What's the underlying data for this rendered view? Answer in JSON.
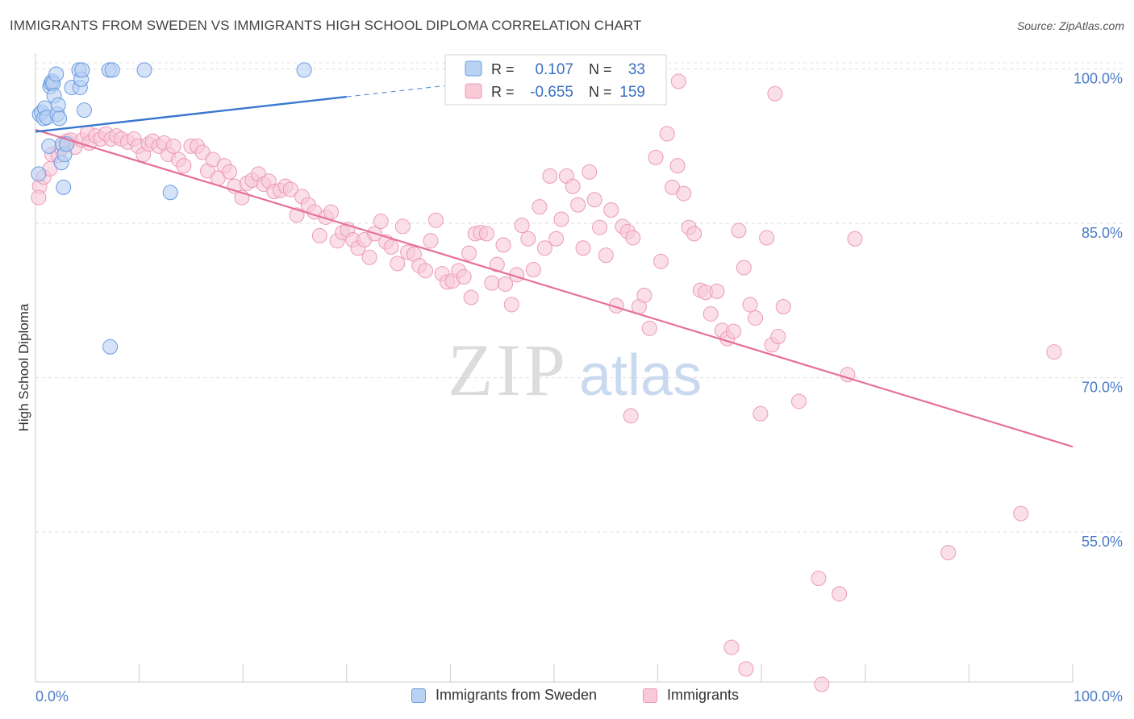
{
  "title": "IMMIGRANTS FROM SWEDEN VS IMMIGRANTS HIGH SCHOOL DIPLOMA CORRELATION CHART",
  "source": "Source: ZipAtlas.com",
  "watermark": {
    "zip": "ZIP",
    "atlas": "atlas"
  },
  "colors": {
    "blue_fill": "#b9d1f3",
    "blue_stroke": "#6b9be0",
    "blue_line": "#3a78d0",
    "pink_fill": "#f9c9d8",
    "pink_stroke": "#ec9ab6",
    "pink_line": "#e6709a",
    "axis_text_blue": "#4a7cc9",
    "grid": "#dddddd"
  },
  "stats_box": {
    "rows": [
      {
        "r_label": "R =",
        "r_value": "0.107",
        "n_label": "N =",
        "n_value": "33",
        "color": "blue"
      },
      {
        "r_label": "R =",
        "r_value": "-0.655",
        "n_label": "N =",
        "n_value": "159",
        "color": "pink"
      }
    ]
  },
  "legend": {
    "items": [
      {
        "label": "Immigrants from Sweden",
        "color": "blue"
      },
      {
        "label": "Immigrants",
        "color": "pink"
      }
    ]
  },
  "chart_data": {
    "type": "scatter",
    "title": "IMMIGRANTS FROM SWEDEN VS IMMIGRANTS HIGH SCHOOL DIPLOMA CORRELATION CHART",
    "xlabel": "",
    "ylabel": "High School Diploma",
    "xlim": [
      0,
      100
    ],
    "ylim": [
      40,
      100
    ],
    "x_tick_labels": [
      "0.0%",
      "100.0%"
    ],
    "y_ticks": [
      55,
      70,
      85,
      100
    ],
    "y_tick_labels": [
      "55.0%",
      "70.0%",
      "85.0%",
      "100.0%"
    ],
    "grid": true,
    "legend_position": "bottom-center",
    "series": [
      {
        "name": "Immigrants from Sweden",
        "color": "blue",
        "R": 0.107,
        "N": 33,
        "trend": {
          "x": [
            0,
            30
          ],
          "y": [
            93.9,
            97.3
          ],
          "dashed_extension_to_x": 42
        },
        "points": [
          [
            0.3,
            89.8
          ],
          [
            0.4,
            95.6
          ],
          [
            0.6,
            95.8
          ],
          [
            0.8,
            95.2
          ],
          [
            0.9,
            96.2
          ],
          [
            1.1,
            95.3
          ],
          [
            1.3,
            92.5
          ],
          [
            1.4,
            98.3
          ],
          [
            1.5,
            98.6
          ],
          [
            1.6,
            98.8
          ],
          [
            1.7,
            98.6
          ],
          [
            1.8,
            97.4
          ],
          [
            2.0,
            99.5
          ],
          [
            2.1,
            95.6
          ],
          [
            2.2,
            96.5
          ],
          [
            2.3,
            95.2
          ],
          [
            2.5,
            90.9
          ],
          [
            2.6,
            92.7
          ],
          [
            2.7,
            88.5
          ],
          [
            2.8,
            91.7
          ],
          [
            3.0,
            92.7
          ],
          [
            3.5,
            98.2
          ],
          [
            4.2,
            99.9
          ],
          [
            4.3,
            98.2
          ],
          [
            4.4,
            99.0
          ],
          [
            4.5,
            99.9
          ],
          [
            4.7,
            96.0
          ],
          [
            7.1,
            99.9
          ],
          [
            7.4,
            99.9
          ],
          [
            10.5,
            99.9
          ],
          [
            13.0,
            88.0
          ],
          [
            7.2,
            73.0
          ],
          [
            25.9,
            99.9
          ]
        ]
      },
      {
        "name": "Immigrants",
        "color": "pink",
        "R": -0.655,
        "N": 159,
        "trend": {
          "x": [
            0,
            100
          ],
          "y": [
            94.1,
            63.3
          ]
        },
        "points": [
          [
            0.4,
            88.6
          ],
          [
            0.8,
            89.5
          ],
          [
            1.4,
            90.3
          ],
          [
            1.6,
            91.7
          ],
          [
            2.2,
            91.6
          ],
          [
            2.5,
            92.3
          ],
          [
            3.0,
            93.0
          ],
          [
            3.4,
            93.1
          ],
          [
            3.8,
            92.4
          ],
          [
            4.5,
            93.1
          ],
          [
            5.0,
            93.8
          ],
          [
            5.2,
            92.8
          ],
          [
            5.8,
            93.5
          ],
          [
            6.3,
            93.2
          ],
          [
            6.8,
            93.7
          ],
          [
            7.3,
            93.2
          ],
          [
            7.8,
            93.5
          ],
          [
            8.3,
            93.2
          ],
          [
            8.9,
            92.9
          ],
          [
            9.5,
            93.2
          ],
          [
            9.9,
            92.5
          ],
          [
            10.4,
            91.7
          ],
          [
            10.9,
            92.7
          ],
          [
            11.3,
            93.0
          ],
          [
            11.9,
            92.5
          ],
          [
            12.4,
            92.8
          ],
          [
            12.8,
            91.7
          ],
          [
            13.3,
            92.5
          ],
          [
            13.8,
            91.2
          ],
          [
            14.3,
            90.6
          ],
          [
            15.0,
            92.5
          ],
          [
            15.6,
            92.5
          ],
          [
            16.1,
            91.9
          ],
          [
            16.6,
            90.1
          ],
          [
            17.1,
            91.2
          ],
          [
            17.6,
            89.4
          ],
          [
            18.2,
            90.6
          ],
          [
            18.7,
            90.0
          ],
          [
            19.2,
            88.6
          ],
          [
            19.9,
            87.5
          ],
          [
            20.4,
            88.9
          ],
          [
            20.9,
            89.2
          ],
          [
            21.5,
            89.8
          ],
          [
            22.0,
            88.8
          ],
          [
            22.5,
            89.1
          ],
          [
            23.0,
            88.1
          ],
          [
            23.6,
            88.2
          ],
          [
            24.1,
            88.6
          ],
          [
            24.6,
            88.3
          ],
          [
            25.2,
            85.8
          ],
          [
            25.7,
            87.6
          ],
          [
            26.3,
            86.8
          ],
          [
            26.9,
            86.1
          ],
          [
            27.4,
            83.8
          ],
          [
            28.0,
            85.6
          ],
          [
            28.5,
            86.1
          ],
          [
            29.1,
            83.3
          ],
          [
            29.6,
            84.1
          ],
          [
            30.1,
            84.4
          ],
          [
            30.6,
            83.4
          ],
          [
            31.1,
            82.6
          ],
          [
            31.7,
            83.4
          ],
          [
            32.2,
            81.7
          ],
          [
            32.7,
            84.0
          ],
          [
            33.3,
            85.2
          ],
          [
            33.8,
            83.2
          ],
          [
            34.3,
            82.7
          ],
          [
            34.9,
            81.1
          ],
          [
            35.4,
            84.7
          ],
          [
            35.9,
            82.2
          ],
          [
            36.5,
            82.0
          ],
          [
            37.0,
            80.9
          ],
          [
            37.6,
            80.4
          ],
          [
            38.1,
            83.3
          ],
          [
            38.6,
            85.3
          ],
          [
            39.2,
            80.1
          ],
          [
            39.7,
            79.3
          ],
          [
            40.2,
            79.4
          ],
          [
            40.8,
            80.4
          ],
          [
            41.3,
            79.8
          ],
          [
            41.8,
            82.1
          ],
          [
            42.0,
            77.8
          ],
          [
            42.4,
            84.0
          ],
          [
            42.9,
            84.1
          ],
          [
            43.5,
            84.0
          ],
          [
            44.0,
            79.2
          ],
          [
            44.5,
            81.0
          ],
          [
            45.1,
            82.9
          ],
          [
            45.3,
            79.1
          ],
          [
            45.9,
            77.1
          ],
          [
            46.4,
            80.0
          ],
          [
            46.9,
            84.8
          ],
          [
            47.5,
            83.5
          ],
          [
            48.0,
            80.5
          ],
          [
            48.6,
            86.6
          ],
          [
            49.1,
            82.6
          ],
          [
            49.6,
            89.6
          ],
          [
            50.2,
            83.5
          ],
          [
            50.7,
            85.4
          ],
          [
            51.2,
            89.6
          ],
          [
            51.8,
            88.6
          ],
          [
            52.3,
            86.8
          ],
          [
            52.8,
            82.6
          ],
          [
            53.4,
            90.0
          ],
          [
            53.9,
            87.3
          ],
          [
            54.4,
            84.6
          ],
          [
            55.0,
            81.9
          ],
          [
            55.5,
            86.3
          ],
          [
            56.0,
            77.0
          ],
          [
            56.6,
            84.7
          ],
          [
            57.1,
            84.2
          ],
          [
            57.6,
            83.6
          ],
          [
            58.2,
            76.9
          ],
          [
            58.7,
            78.0
          ],
          [
            59.2,
            74.8
          ],
          [
            59.8,
            91.4
          ],
          [
            60.3,
            81.3
          ],
          [
            60.9,
            93.7
          ],
          [
            61.4,
            88.5
          ],
          [
            61.9,
            90.6
          ],
          [
            62.5,
            87.9
          ],
          [
            63.0,
            84.6
          ],
          [
            63.5,
            84.0
          ],
          [
            64.1,
            78.5
          ],
          [
            64.6,
            78.3
          ],
          [
            65.1,
            76.2
          ],
          [
            65.7,
            78.4
          ],
          [
            66.2,
            74.6
          ],
          [
            66.7,
            73.8
          ],
          [
            67.3,
            74.5
          ],
          [
            67.8,
            84.3
          ],
          [
            68.3,
            80.7
          ],
          [
            68.9,
            77.1
          ],
          [
            69.4,
            75.8
          ],
          [
            69.9,
            66.5
          ],
          [
            70.5,
            83.6
          ],
          [
            71.0,
            73.2
          ],
          [
            71.6,
            74.0
          ],
          [
            72.1,
            76.9
          ],
          [
            73.6,
            67.7
          ],
          [
            79.0,
            83.5
          ],
          [
            62.0,
            98.8
          ],
          [
            71.3,
            97.6
          ],
          [
            57.4,
            66.3
          ],
          [
            78.3,
            70.3
          ],
          [
            98.2,
            72.5
          ],
          [
            95.0,
            56.8
          ],
          [
            88.0,
            53.0
          ],
          [
            75.5,
            50.5
          ],
          [
            77.5,
            49.0
          ],
          [
            67.1,
            43.8
          ],
          [
            68.5,
            41.7
          ],
          [
            75.8,
            40.2
          ],
          [
            0.3,
            87.5
          ]
        ]
      }
    ]
  }
}
